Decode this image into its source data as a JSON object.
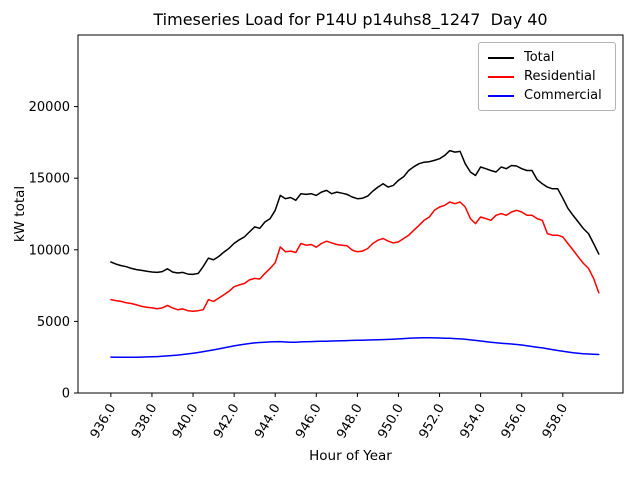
{
  "chart_data": {
    "type": "line",
    "title": "Timeseries Load for P14U p14uhs8_1247  Day 40",
    "xlabel": "Hour of Year",
    "ylabel": "kW total",
    "xlim": [
      934.4,
      960.93
    ],
    "ylim": [
      0,
      25000
    ],
    "grid": false,
    "legend_position": "upper right",
    "xticks": {
      "values": [
        936,
        938,
        940,
        942,
        944,
        946,
        948,
        950,
        952,
        954,
        956,
        958
      ],
      "labels": [
        "936.0",
        "938.0",
        "940.0",
        "942.0",
        "944.0",
        "946.0",
        "948.0",
        "950.0",
        "952.0",
        "954.0",
        "956.0",
        "958.0"
      ]
    },
    "yticks": {
      "values": [
        0,
        5000,
        10000,
        15000,
        20000
      ],
      "labels": [
        "0",
        "5000",
        "10000",
        "15000",
        "20000"
      ]
    },
    "x": [
      936.0,
      936.25,
      936.5,
      936.75,
      937.0,
      937.25,
      937.5,
      937.75,
      938.0,
      938.25,
      938.5,
      938.75,
      939.0,
      939.25,
      939.5,
      939.75,
      940.0,
      940.25,
      940.5,
      940.75,
      941.0,
      941.25,
      941.5,
      941.75,
      942.0,
      942.25,
      942.5,
      942.75,
      943.0,
      943.25,
      943.5,
      943.75,
      944.0,
      944.25,
      944.5,
      944.75,
      945.0,
      945.25,
      945.5,
      945.75,
      946.0,
      946.25,
      946.5,
      946.75,
      947.0,
      947.25,
      947.5,
      947.75,
      948.0,
      948.25,
      948.5,
      948.75,
      949.0,
      949.25,
      949.5,
      949.75,
      950.0,
      950.25,
      950.5,
      950.75,
      951.0,
      951.25,
      951.5,
      951.75,
      952.0,
      952.25,
      952.5,
      952.75,
      953.0,
      953.25,
      953.5,
      953.75,
      954.0,
      954.25,
      954.5,
      954.75,
      955.0,
      955.25,
      955.5,
      955.75,
      956.0,
      956.25,
      956.5,
      956.75,
      957.0,
      957.25,
      957.5,
      957.75,
      958.0,
      958.25,
      958.5,
      958.75,
      959.0,
      959.25,
      959.5,
      959.75
    ],
    "series": [
      {
        "name": "Total",
        "color": "#000000",
        "values": [
          9150,
          9000,
          8900,
          8820,
          8700,
          8620,
          8560,
          8500,
          8450,
          8420,
          8480,
          8670,
          8450,
          8380,
          8420,
          8300,
          8280,
          8350,
          8840,
          9420,
          9300,
          9530,
          9840,
          10100,
          10450,
          10700,
          10900,
          11250,
          11600,
          11500,
          11940,
          12180,
          12760,
          13800,
          13570,
          13650,
          13460,
          13920,
          13870,
          13920,
          13800,
          14030,
          14150,
          13920,
          14030,
          13950,
          13870,
          13690,
          13570,
          13600,
          13750,
          14100,
          14380,
          14610,
          14380,
          14500,
          14850,
          15100,
          15540,
          15800,
          16010,
          16120,
          16150,
          16240,
          16360,
          16590,
          16930,
          16820,
          16870,
          16010,
          15430,
          15190,
          15780,
          15660,
          15540,
          15430,
          15780,
          15660,
          15890,
          15850,
          15660,
          15540,
          15540,
          14900,
          14610,
          14380,
          14260,
          14260,
          13600,
          12900,
          12400,
          11950,
          11480,
          11130,
          10440,
          9700
        ]
      },
      {
        "name": "Residential",
        "color": "#ff0000",
        "values": [
          6520,
          6450,
          6400,
          6300,
          6250,
          6150,
          6050,
          5990,
          5940,
          5890,
          5940,
          6120,
          5940,
          5820,
          5870,
          5750,
          5710,
          5750,
          5820,
          6520,
          6400,
          6630,
          6860,
          7100,
          7420,
          7550,
          7650,
          7900,
          8000,
          7960,
          8350,
          8700,
          9100,
          10200,
          9860,
          9910,
          9810,
          10440,
          10320,
          10370,
          10180,
          10440,
          10600,
          10480,
          10370,
          10320,
          10280,
          9980,
          9860,
          9910,
          10090,
          10440,
          10670,
          10790,
          10600,
          10480,
          10550,
          10790,
          11020,
          11370,
          11710,
          12060,
          12290,
          12760,
          12990,
          13110,
          13340,
          13220,
          13340,
          12990,
          12180,
          11830,
          12290,
          12180,
          12060,
          12410,
          12530,
          12410,
          12640,
          12760,
          12640,
          12410,
          12410,
          12180,
          12060,
          11130,
          11020,
          11020,
          10900,
          10440,
          9980,
          9510,
          9050,
          8700,
          8000,
          7000
        ]
      },
      {
        "name": "Commercial",
        "color": "#0000ff",
        "values": [
          2510,
          2500,
          2490,
          2490,
          2490,
          2500,
          2510,
          2520,
          2530,
          2540,
          2560,
          2590,
          2620,
          2650,
          2690,
          2730,
          2780,
          2830,
          2890,
          2950,
          3010,
          3080,
          3150,
          3220,
          3290,
          3350,
          3410,
          3460,
          3500,
          3530,
          3550,
          3570,
          3580,
          3590,
          3560,
          3540,
          3550,
          3570,
          3580,
          3590,
          3600,
          3610,
          3620,
          3630,
          3640,
          3650,
          3660,
          3670,
          3680,
          3690,
          3700,
          3710,
          3720,
          3730,
          3740,
          3760,
          3780,
          3800,
          3820,
          3840,
          3850,
          3860,
          3860,
          3850,
          3840,
          3830,
          3820,
          3800,
          3780,
          3750,
          3710,
          3670,
          3630,
          3590,
          3550,
          3510,
          3480,
          3450,
          3420,
          3390,
          3350,
          3300,
          3250,
          3200,
          3150,
          3090,
          3030,
          2970,
          2910,
          2860,
          2810,
          2770,
          2740,
          2720,
          2700,
          2690
        ]
      }
    ]
  }
}
